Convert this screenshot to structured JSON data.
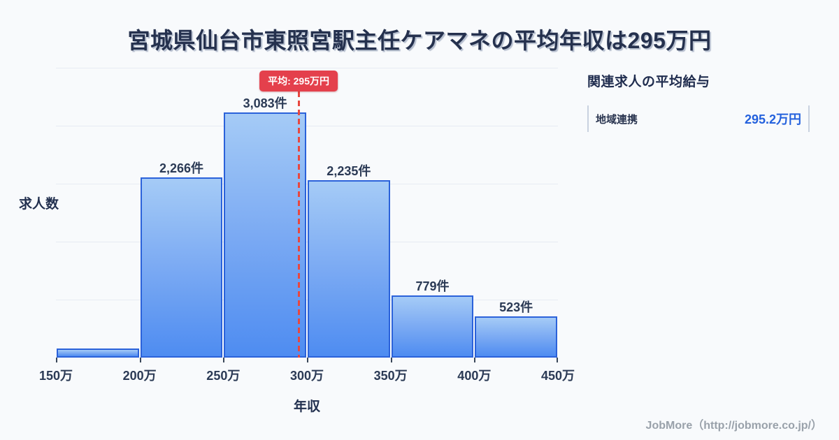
{
  "title": "宮城県仙台市東照宮駅主任ケアマネの平均年収は295万円",
  "chart_data": {
    "type": "bar",
    "subtype": "histogram",
    "xlabel": "年収",
    "ylabel": "求人数",
    "x_ticks": [
      "150万",
      "200万",
      "250万",
      "300万",
      "350万",
      "400万",
      "450万"
    ],
    "bin_edges_man_yen": [
      150,
      200,
      250,
      300,
      350,
      400,
      450
    ],
    "values": [
      115,
      2266,
      3083,
      2235,
      779,
      523
    ],
    "bar_labels": [
      "",
      "2,266件",
      "3,083件",
      "2,235件",
      "779件",
      "523件"
    ],
    "ylim": [
      0,
      3650
    ],
    "grid_divisions": 5,
    "grid": "horizontal-only",
    "legend": "none",
    "average": {
      "value_man_yen": 295,
      "label": "平均: 295万円"
    },
    "colors": {
      "bar_fill_top": "#a5cbf6",
      "bar_fill_bottom": "#4e8cf1",
      "bar_border": "#2b62da",
      "average_line": "#e8473f",
      "average_badge_bg": "#e4404c",
      "average_badge_text": "#ffffff",
      "gridline": "#e7ebf3",
      "background": "#f8fafc",
      "text_dark": "#25314e"
    }
  },
  "side_panel": {
    "header": "関連求人の平均給与",
    "rows": [
      {
        "label": "地域連携",
        "value": "295.2万円"
      }
    ],
    "value_color": "#2461dd"
  },
  "footer": {
    "credit": "JobMore（http://jobmore.co.jp/）"
  }
}
